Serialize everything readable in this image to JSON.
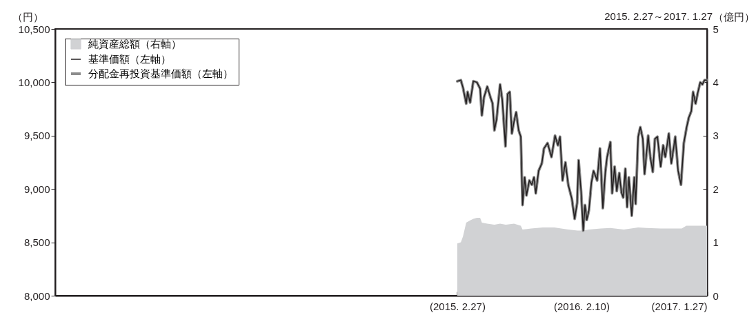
{
  "chart_data": {
    "type": "line",
    "ylabel": "（円）",
    "y2label": "（億円）",
    "annotations": [
      "2015. 2.27～2017. 1.27"
    ],
    "legend": "top left",
    "xlim": [
      "2012-01-27",
      "2017-01-27"
    ],
    "xticks": [
      {
        "value": "2015-02-27",
        "label": "(2015. 2.27)"
      },
      {
        "value": "2016-02-10",
        "label": "(2016. 2.10)"
      },
      {
        "value": "2017-01-27",
        "label": "(2017. 1.27)"
      }
    ],
    "ylim": [
      8000,
      10500
    ],
    "yticks": [
      {
        "value": 8000,
        "label": "8,000"
      },
      {
        "value": 8500,
        "label": "8,500"
      },
      {
        "value": 9000,
        "label": "9,000"
      },
      {
        "value": 9500,
        "label": "9,500"
      },
      {
        "value": 10000,
        "label": "10,000"
      },
      {
        "value": 10500,
        "label": "10,500"
      }
    ],
    "y2lim": [
      0,
      5
    ],
    "y2ticks": [
      0,
      1,
      2,
      3,
      4,
      5
    ],
    "series": [
      {
        "name": "純資産総額（右軸）",
        "type": "area",
        "axis": "y2",
        "color": "#d1d2d4",
        "x": [
          "2015-02-27",
          "2015-03-09",
          "2015-03-15",
          "2015-03-24",
          "2015-04-04",
          "2015-04-13",
          "2015-04-23",
          "2015-05-02",
          "2015-05-07",
          "2015-05-22",
          "2015-06-11",
          "2015-06-27",
          "2015-07-13",
          "2015-08-05",
          "2015-08-24",
          "2015-08-29",
          "2015-09-22",
          "2015-10-25",
          "2015-11-26",
          "2016-01-04",
          "2016-01-30",
          "2016-02-15",
          "2016-03-02",
          "2016-04-04",
          "2016-05-01",
          "2016-06-08",
          "2016-07-18",
          "2016-08-11",
          "2016-09-19",
          "2016-11-17",
          "2016-11-30",
          "2016-12-19",
          "2017-01-27"
        ],
        "values": [
          0.98,
          1.0,
          1.11,
          1.37,
          1.41,
          1.44,
          1.46,
          1.46,
          1.37,
          1.35,
          1.33,
          1.35,
          1.33,
          1.35,
          1.31,
          1.24,
          1.26,
          1.28,
          1.28,
          1.24,
          1.22,
          1.22,
          1.24,
          1.26,
          1.27,
          1.24,
          1.28,
          1.27,
          1.26,
          1.26,
          1.31,
          1.31,
          1.31
        ]
      },
      {
        "name": "基準価額（左軸）",
        "type": "line",
        "color": "#231f20",
        "x": [
          "2015-02-27",
          "2015-03-09",
          "2015-03-15",
          "2015-03-24",
          "2015-03-28",
          "2015-04-04",
          "2015-04-13",
          "2015-04-23",
          "2015-05-02",
          "2015-05-07",
          "2015-05-13",
          "2015-05-22",
          "2015-05-30",
          "2015-06-06",
          "2015-06-11",
          "2015-06-17",
          "2015-06-27",
          "2015-07-03",
          "2015-07-12",
          "2015-07-18",
          "2015-07-24",
          "2015-07-30",
          "2015-08-05",
          "2015-08-11",
          "2015-08-18",
          "2015-08-24",
          "2015-08-29",
          "2015-09-04",
          "2015-09-09",
          "2015-09-17",
          "2015-09-24",
          "2015-09-30",
          "2015-10-05",
          "2015-10-13",
          "2015-10-22",
          "2015-10-28",
          "2015-11-07",
          "2015-11-18",
          "2015-11-28",
          "2015-12-06",
          "2015-12-12",
          "2015-12-19",
          "2015-12-27",
          "2016-01-04",
          "2016-01-14",
          "2016-01-22",
          "2016-01-29",
          "2016-02-02",
          "2016-02-09",
          "2016-02-15",
          "2016-02-20",
          "2016-02-25",
          "2016-03-02",
          "2016-03-09",
          "2016-03-15",
          "2016-03-25",
          "2016-04-02",
          "2016-04-10",
          "2016-04-17",
          "2016-04-22",
          "2016-05-01",
          "2016-05-06",
          "2016-05-13",
          "2016-05-19",
          "2016-05-26",
          "2016-06-01",
          "2016-06-06",
          "2016-06-12",
          "2016-06-17",
          "2016-06-22",
          "2016-06-30",
          "2016-07-07",
          "2016-07-11",
          "2016-07-18",
          "2016-07-24",
          "2016-07-31",
          "2016-08-05",
          "2016-08-15",
          "2016-08-21",
          "2016-08-28",
          "2016-09-03",
          "2016-09-10",
          "2016-09-19",
          "2016-09-26",
          "2016-10-02",
          "2016-10-12",
          "2016-10-19",
          "2016-10-30",
          "2016-11-07",
          "2016-11-15",
          "2016-11-23",
          "2016-12-01",
          "2016-12-07",
          "2016-12-14",
          "2016-12-19",
          "2016-12-26",
          "2017-01-01",
          "2017-01-08",
          "2017-01-14",
          "2017-01-20",
          "2017-01-27"
        ],
        "values": [
          10010,
          10020,
          9950,
          9800,
          9910,
          9810,
          10010,
          10000,
          9940,
          9690,
          9860,
          9960,
          9870,
          9800,
          9550,
          9650,
          9980,
          9840,
          9400,
          9890,
          9910,
          9520,
          9630,
          9720,
          9550,
          9490,
          8850,
          9110,
          8940,
          9080,
          9040,
          9110,
          8960,
          9170,
          9240,
          9380,
          9430,
          9300,
          9500,
          9410,
          9490,
          9080,
          9250,
          9040,
          8910,
          8720,
          8870,
          9270,
          8980,
          8610,
          8850,
          8710,
          8800,
          9060,
          9170,
          9080,
          9380,
          8820,
          9160,
          9300,
          9440,
          8960,
          9210,
          8980,
          9150,
          8970,
          8920,
          9190,
          8830,
          9110,
          8750,
          9110,
          8860,
          9490,
          9580,
          9470,
          9140,
          9500,
          9300,
          9160,
          9470,
          9490,
          9210,
          9410,
          9300,
          9520,
          9240,
          9490,
          9170,
          9040,
          9430,
          9580,
          9670,
          9730,
          9910,
          9800,
          9900,
          10000,
          9980,
          10020,
          10020
        ]
      },
      {
        "name": "分配金再投資基準価額（左軸）",
        "type": "line",
        "color": "#8c8c8c",
        "x": [
          "2015-02-27",
          "2015-03-09",
          "2015-03-15",
          "2015-03-24",
          "2015-03-28",
          "2015-04-04",
          "2015-04-13",
          "2015-04-23",
          "2015-05-02",
          "2015-05-07",
          "2015-05-13",
          "2015-05-22",
          "2015-05-30",
          "2015-06-06",
          "2015-06-11",
          "2015-06-17",
          "2015-06-27",
          "2015-07-03",
          "2015-07-12",
          "2015-07-18",
          "2015-07-24",
          "2015-07-30",
          "2015-08-05",
          "2015-08-11",
          "2015-08-18",
          "2015-08-24",
          "2015-08-29",
          "2015-09-04",
          "2015-09-09",
          "2015-09-17",
          "2015-09-24",
          "2015-09-30",
          "2015-10-05",
          "2015-10-13",
          "2015-10-22",
          "2015-10-28",
          "2015-11-07",
          "2015-11-18",
          "2015-11-28",
          "2015-12-06",
          "2015-12-12",
          "2015-12-19",
          "2015-12-27",
          "2016-01-04",
          "2016-01-14",
          "2016-01-22",
          "2016-01-29",
          "2016-02-02",
          "2016-02-09",
          "2016-02-15",
          "2016-02-20",
          "2016-02-25",
          "2016-03-02",
          "2016-03-09",
          "2016-03-15",
          "2016-03-25",
          "2016-04-02",
          "2016-04-10",
          "2016-04-17",
          "2016-04-22",
          "2016-05-01",
          "2016-05-06",
          "2016-05-13",
          "2016-05-19",
          "2016-05-26",
          "2016-06-01",
          "2016-06-06",
          "2016-06-12",
          "2016-06-17",
          "2016-06-22",
          "2016-06-30",
          "2016-07-07",
          "2016-07-11",
          "2016-07-18",
          "2016-07-24",
          "2016-07-31",
          "2016-08-05",
          "2016-08-15",
          "2016-08-21",
          "2016-08-28",
          "2016-09-03",
          "2016-09-10",
          "2016-09-19",
          "2016-09-26",
          "2016-10-02",
          "2016-10-12",
          "2016-10-19",
          "2016-10-30",
          "2016-11-07",
          "2016-11-15",
          "2016-11-23",
          "2016-12-01",
          "2016-12-07",
          "2016-12-14",
          "2016-12-19",
          "2016-12-26",
          "2017-01-01",
          "2017-01-08",
          "2017-01-14",
          "2017-01-20",
          "2017-01-27"
        ],
        "values": [
          10010,
          10020,
          9950,
          9800,
          9910,
          9810,
          10010,
          10000,
          9940,
          9690,
          9860,
          9960,
          9870,
          9800,
          9550,
          9650,
          9980,
          9840,
          9400,
          9890,
          9910,
          9520,
          9630,
          9720,
          9550,
          9490,
          8850,
          9110,
          8940,
          9080,
          9040,
          9110,
          8960,
          9170,
          9240,
          9380,
          9430,
          9300,
          9500,
          9410,
          9490,
          9080,
          9250,
          9040,
          8910,
          8720,
          8870,
          9270,
          8980,
          8610,
          8850,
          8710,
          8800,
          9060,
          9170,
          9080,
          9380,
          8820,
          9160,
          9300,
          9440,
          8960,
          9210,
          8980,
          9150,
          8970,
          8920,
          9190,
          8830,
          9110,
          8750,
          9110,
          8860,
          9490,
          9580,
          9470,
          9140,
          9500,
          9300,
          9160,
          9470,
          9490,
          9210,
          9410,
          9300,
          9520,
          9240,
          9490,
          9170,
          9040,
          9430,
          9580,
          9670,
          9730,
          9910,
          9800,
          9900,
          10000,
          9980,
          10020,
          10020
        ]
      }
    ]
  }
}
